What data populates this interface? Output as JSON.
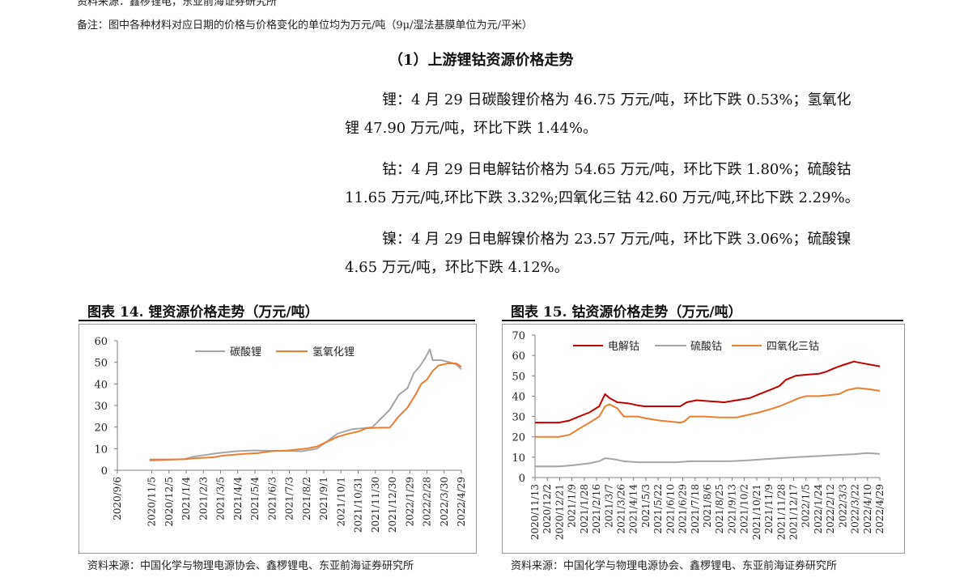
{
  "header": {
    "top_cut_text": "资料来源：鑫椤锂电，东亚前海证券研究所",
    "note": "备注：图中各种材料对应日期的价格与价格变化的单位均为万元/吨（9μ/湿法基膜单位为元/平米）"
  },
  "section": {
    "title": "（1）上游锂钴资源价格走势",
    "paragraphs": [
      {
        "line1": "锂：4 月 29 日碳酸锂价格为 46.75 万元/吨，环比下跌 0.53%；氢氧化",
        "line2": "锂 47.90 万元/吨，环比下跌 1.44%。"
      },
      {
        "line1": "钴：4 月 29 日电解钴价格为 54.65 万元/吨，环比下跌 1.80%；硫酸钴",
        "line2": "11.65 万元/吨,环比下跌 3.32%;四氧化三钴 42.60 万元/吨,环比下跌 2.29%。"
      },
      {
        "line1": "镍：4 月 29 日电解镍价格为 23.57 万元/吨，环比下跌 3.06%；硫酸镍",
        "line2": "4.65 万元/吨，环比下跌 4.12%。"
      }
    ]
  },
  "figures": [
    {
      "title": "图表 14. 锂资源价格走势（万元/吨）",
      "source": "资料来源：中国化学与物理电源协会、鑫椤锂电、东亚前海证券研究所"
    },
    {
      "title": "图表 15. 钴资源价格走势（万元/吨）",
      "source": "资料来源：中国化学与物理电源协会、鑫椤锂电、东亚前海证券研究所"
    }
  ],
  "chart_data": [
    {
      "type": "line",
      "title": "图表 14. 锂资源价格走势（万元/吨）",
      "ylim": [
        0,
        60
      ],
      "yticks": [
        0,
        10,
        20,
        30,
        40,
        50,
        60
      ],
      "xlim": [
        "2020-09-06",
        "2022-04-29"
      ],
      "xticks": [
        "2020/9/6",
        "2020/11/5",
        "2020/12/5",
        "2021/1/4",
        "2021/2/3",
        "2021/3/5",
        "2021/4/4",
        "2021/5/4",
        "2021/6/3",
        "2021/7/3",
        "2021/8/2",
        "2021/9/1",
        "2021/10/1",
        "2021/10/31",
        "2021/11/30",
        "2021/12/30",
        "2022/1/29",
        "2022/2/28",
        "2022/3/30",
        "2022/4/29"
      ],
      "grid": false,
      "legend": "top-right",
      "series": [
        {
          "name": "碳酸锂",
          "color": "#a6a6a6",
          "points": [
            [
              "2020-11-01",
              4.5
            ],
            [
              "2020-12-01",
              4.8
            ],
            [
              "2021-01-01",
              5.2
            ],
            [
              "2021-01-20",
              6.5
            ],
            [
              "2021-02-10",
              7.2
            ],
            [
              "2021-03-01",
              8.0
            ],
            [
              "2021-04-01",
              8.8
            ],
            [
              "2021-05-01",
              9.2
            ],
            [
              "2021-06-01",
              9.0
            ],
            [
              "2021-07-01",
              9.0
            ],
            [
              "2021-07-25",
              8.8
            ],
            [
              "2021-08-20",
              10.0
            ],
            [
              "2021-09-05",
              13.0
            ],
            [
              "2021-09-25",
              17.0
            ],
            [
              "2021-10-20",
              19.0
            ],
            [
              "2021-11-10",
              19.5
            ],
            [
              "2021-11-25",
              20.0
            ],
            [
              "2021-12-10",
              24.0
            ],
            [
              "2021-12-25",
              28.0
            ],
            [
              "2022-01-10",
              35.0
            ],
            [
              "2022-01-25",
              38.0
            ],
            [
              "2022-02-05",
              45.0
            ],
            [
              "2022-02-15",
              48.0
            ],
            [
              "2022-02-25",
              52.0
            ],
            [
              "2022-03-05",
              56.0
            ],
            [
              "2022-03-10",
              51.0
            ],
            [
              "2022-03-25",
              51.0
            ],
            [
              "2022-04-10",
              50.0
            ],
            [
              "2022-04-20",
              49.0
            ],
            [
              "2022-04-29",
              46.75
            ]
          ]
        },
        {
          "name": "氢氧化锂",
          "color": "#ed7d31",
          "points": [
            [
              "2020-11-01",
              5.0
            ],
            [
              "2020-12-01",
              5.0
            ],
            [
              "2021-01-01",
              5.1
            ],
            [
              "2021-01-20",
              5.6
            ],
            [
              "2021-02-20",
              6.0
            ],
            [
              "2021-03-10",
              6.8
            ],
            [
              "2021-04-10",
              7.5
            ],
            [
              "2021-05-10",
              8.0
            ],
            [
              "2021-06-01",
              8.8
            ],
            [
              "2021-07-01",
              9.2
            ],
            [
              "2021-08-01",
              10.0
            ],
            [
              "2021-08-20",
              11.0
            ],
            [
              "2021-09-05",
              13.0
            ],
            [
              "2021-09-25",
              15.5
            ],
            [
              "2021-10-15",
              17.0
            ],
            [
              "2021-11-01",
              18.0
            ],
            [
              "2021-11-15",
              19.5
            ],
            [
              "2021-12-01",
              19.7
            ],
            [
              "2021-12-25",
              19.8
            ],
            [
              "2022-01-10",
              25.0
            ],
            [
              "2022-01-25",
              29.0
            ],
            [
              "2022-02-08",
              35.0
            ],
            [
              "2022-02-18",
              40.0
            ],
            [
              "2022-02-28",
              42.0
            ],
            [
              "2022-03-10",
              46.0
            ],
            [
              "2022-03-20",
              48.5
            ],
            [
              "2022-04-05",
              49.5
            ],
            [
              "2022-04-20",
              49.5
            ],
            [
              "2022-04-29",
              47.9
            ]
          ]
        }
      ]
    },
    {
      "type": "line",
      "title": "图表 15. 钴资源价格走势（万元/吨）",
      "ylim": [
        0,
        70
      ],
      "yticks": [
        0,
        10,
        20,
        30,
        40,
        50,
        60,
        70
      ],
      "xlim": [
        "2020-11-13",
        "2022-04-29"
      ],
      "xticks": [
        "2020/11/13",
        "2020/12/2",
        "2020/12/21",
        "2021/1/9",
        "2021/1/28",
        "2021/2/16",
        "2021/3/7",
        "2021/3/26",
        "2021/4/14",
        "2021/5/3",
        "2021/5/22",
        "2021/6/10",
        "2021/6/29",
        "2021/7/18",
        "2021/8/6",
        "2021/8/25",
        "2021/9/13",
        "2021/10/2",
        "2021/10/21",
        "2021/11/9",
        "2021/11/28",
        "2021/12/17",
        "2022/1/5",
        "2022/1/24",
        "2022/2/12",
        "2022/3/3",
        "2022/3/22",
        "2022/4/10",
        "2022/4/29"
      ],
      "grid": false,
      "legend": "top",
      "series": [
        {
          "name": "电解钴",
          "color": "#c00000",
          "points": [
            [
              "2020-11-13",
              27.0
            ],
            [
              "2020-12-20",
              27.0
            ],
            [
              "2021-01-05",
              28.0
            ],
            [
              "2021-01-20",
              30.0
            ],
            [
              "2021-02-05",
              32.0
            ],
            [
              "2021-02-20",
              35.0
            ],
            [
              "2021-03-01",
              41.0
            ],
            [
              "2021-03-08",
              39.0
            ],
            [
              "2021-03-20",
              37.0
            ],
            [
              "2021-04-05",
              36.5
            ],
            [
              "2021-04-20",
              35.5
            ],
            [
              "2021-05-01",
              35.0
            ],
            [
              "2021-06-01",
              35.0
            ],
            [
              "2021-06-25",
              35.0
            ],
            [
              "2021-07-05",
              37.0
            ],
            [
              "2021-07-20",
              38.0
            ],
            [
              "2021-08-10",
              37.5
            ],
            [
              "2021-09-01",
              37.0
            ],
            [
              "2021-09-20",
              38.0
            ],
            [
              "2021-10-10",
              39.0
            ],
            [
              "2021-10-25",
              41.0
            ],
            [
              "2021-11-10",
              43.0
            ],
            [
              "2021-11-25",
              45.0
            ],
            [
              "2021-12-05",
              48.0
            ],
            [
              "2021-12-20",
              50.0
            ],
            [
              "2022-01-05",
              50.5
            ],
            [
              "2022-01-25",
              51.0
            ],
            [
              "2022-02-05",
              52.0
            ],
            [
              "2022-02-20",
              54.0
            ],
            [
              "2022-03-05",
              55.5
            ],
            [
              "2022-03-20",
              57.0
            ],
            [
              "2022-04-05",
              56.0
            ],
            [
              "2022-04-29",
              54.65
            ]
          ]
        },
        {
          "name": "硫酸钴",
          "color": "#a6a6a6",
          "points": [
            [
              "2020-11-13",
              5.5
            ],
            [
              "2020-12-20",
              5.5
            ],
            [
              "2021-01-10",
              6.0
            ],
            [
              "2021-02-05",
              7.0
            ],
            [
              "2021-02-20",
              8.0
            ],
            [
              "2021-03-01",
              9.5
            ],
            [
              "2021-03-15",
              9.0
            ],
            [
              "2021-03-30",
              8.0
            ],
            [
              "2021-04-20",
              7.5
            ],
            [
              "2021-05-20",
              7.5
            ],
            [
              "2021-06-20",
              7.5
            ],
            [
              "2021-07-10",
              8.0
            ],
            [
              "2021-08-10",
              8.0
            ],
            [
              "2021-09-10",
              8.0
            ],
            [
              "2021-10-10",
              8.5
            ],
            [
              "2021-11-01",
              9.0
            ],
            [
              "2021-11-25",
              9.5
            ],
            [
              "2021-12-20",
              10.0
            ],
            [
              "2022-01-20",
              10.5
            ],
            [
              "2022-02-20",
              11.0
            ],
            [
              "2022-03-20",
              11.5
            ],
            [
              "2022-04-10",
              12.0
            ],
            [
              "2022-04-29",
              11.65
            ]
          ]
        },
        {
          "name": "四氧化三钴",
          "color": "#ed7d31",
          "points": [
            [
              "2020-11-13",
              20.0
            ],
            [
              "2020-12-20",
              20.0
            ],
            [
              "2021-01-05",
              21.0
            ],
            [
              "2021-01-20",
              24.0
            ],
            [
              "2021-02-05",
              27.0
            ],
            [
              "2021-02-20",
              30.0
            ],
            [
              "2021-03-01",
              35.0
            ],
            [
              "2021-03-08",
              36.0
            ],
            [
              "2021-03-20",
              34.0
            ],
            [
              "2021-03-30",
              30.0
            ],
            [
              "2021-04-20",
              30.0
            ],
            [
              "2021-05-05",
              29.0
            ],
            [
              "2021-05-25",
              28.0
            ],
            [
              "2021-06-25",
              27.0
            ],
            [
              "2021-07-01",
              27.5
            ],
            [
              "2021-07-10",
              30.0
            ],
            [
              "2021-08-01",
              30.0
            ],
            [
              "2021-08-25",
              29.5
            ],
            [
              "2021-09-20",
              29.5
            ],
            [
              "2021-10-10",
              31.0
            ],
            [
              "2021-10-25",
              32.0
            ],
            [
              "2021-11-10",
              33.5
            ],
            [
              "2021-11-25",
              35.0
            ],
            [
              "2021-12-10",
              37.0
            ],
            [
              "2021-12-25",
              39.0
            ],
            [
              "2022-01-05",
              40.0
            ],
            [
              "2022-01-25",
              40.0
            ],
            [
              "2022-02-10",
              40.5
            ],
            [
              "2022-02-25",
              41.0
            ],
            [
              "2022-03-10",
              43.0
            ],
            [
              "2022-03-25",
              44.0
            ],
            [
              "2022-04-10",
              43.5
            ],
            [
              "2022-04-29",
              42.6
            ]
          ]
        }
      ]
    }
  ]
}
